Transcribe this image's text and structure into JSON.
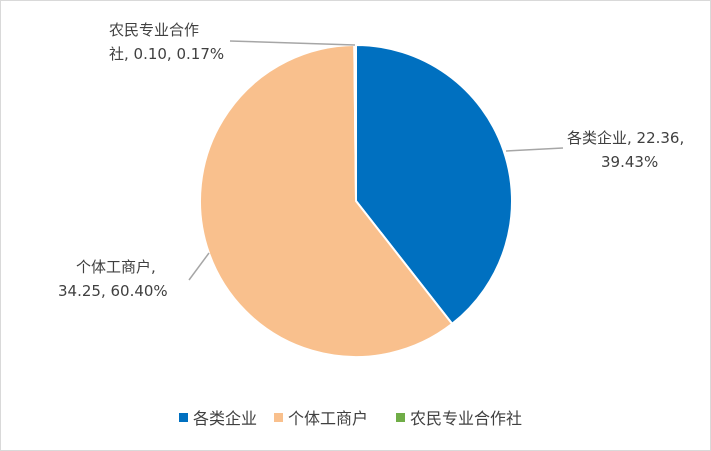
{
  "chart_data": {
    "type": "pie",
    "title": "",
    "legend_position": "bottom",
    "slices": [
      {
        "name": "各类企业",
        "value": 22.36,
        "percent": "39.43%",
        "color": "#0070c0",
        "label_line1": "各类企业, 22.36,",
        "label_line2": "39.43%"
      },
      {
        "name": "个体工商户",
        "value": 34.25,
        "percent": "60.40%",
        "color": "#f9c08d",
        "label_line1": "个体工商户,",
        "label_line2": "34.25, 60.40%"
      },
      {
        "name": "农民专业合作社",
        "value": 0.1,
        "percent": "0.17%",
        "color": "#70ad47",
        "label_line1": "农民专业合作",
        "label_line2": "社, 0.10, 0.17%"
      }
    ]
  }
}
